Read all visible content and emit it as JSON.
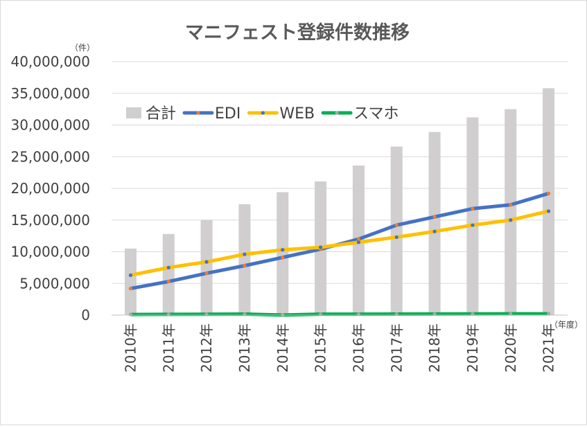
{
  "chart_data": {
    "type": "bar+line",
    "title": "マニフェスト登録件数推移",
    "y_unit_label": "（件）",
    "x_unit_label": "（年度）",
    "categories": [
      "2010年",
      "2011年",
      "2012年",
      "2013年",
      "2014年",
      "2015年",
      "2016年",
      "2017年",
      "2018年",
      "2019年",
      "2020年",
      "2021年"
    ],
    "ylim": [
      0,
      40000000
    ],
    "y_ticks": [
      0,
      5000000,
      10000000,
      15000000,
      20000000,
      25000000,
      30000000,
      35000000,
      40000000
    ],
    "y_tick_labels": [
      "0",
      "5,000,000",
      "10,000,000",
      "15,000,000",
      "20,000,000",
      "25,000,000",
      "30,000,000",
      "35,000,000",
      "40,000,000"
    ],
    "grid": true,
    "legend_position": "top-left",
    "series": [
      {
        "name": "合計",
        "type": "bar",
        "color": "#d0cece",
        "values": [
          10500000,
          12800000,
          15000000,
          17500000,
          19400000,
          21100000,
          23600000,
          26600000,
          28900000,
          31200000,
          32500000,
          35800000
        ]
      },
      {
        "name": "EDI",
        "type": "line",
        "color": "#4472c4",
        "marker_color": "#ed7d31",
        "values": [
          4200000,
          5300000,
          6600000,
          7800000,
          9100000,
          10400000,
          12000000,
          14200000,
          15500000,
          16800000,
          17400000,
          19200000
        ]
      },
      {
        "name": "WEB",
        "type": "line",
        "color": "#ffc000",
        "marker_color": "#4472c4",
        "values": [
          6300000,
          7500000,
          8400000,
          9600000,
          10300000,
          10700000,
          11500000,
          12300000,
          13200000,
          14200000,
          15000000,
          16400000
        ]
      },
      {
        "name": "スマホ",
        "type": "line",
        "color": "#00b050",
        "marker_color": "#a5a5a5",
        "values": [
          100000,
          120000,
          140000,
          160000,
          20000,
          150000,
          150000,
          160000,
          180000,
          190000,
          200000,
          210000
        ]
      }
    ]
  }
}
